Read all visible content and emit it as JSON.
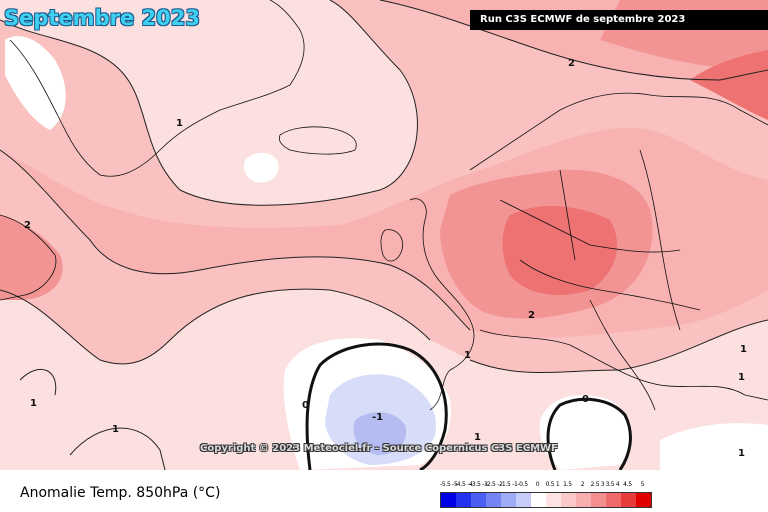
{
  "header": {
    "title": "Septembre 2023",
    "run_label": "Run C3S ECMWF de septembre 2023"
  },
  "map": {
    "copyright": "Copyright © 2023 Meteociel.fr - Source Copernicus C3S ECMWF",
    "contour_labels": [
      "2",
      "1",
      "2",
      "2",
      "1",
      "1",
      "0",
      "-1",
      "0",
      "1",
      "1",
      "1",
      "1",
      "1"
    ]
  },
  "legend": {
    "title": "Anomalie Temp. 850hPa (°C)",
    "scale_labels": [
      "-5.5 -5",
      "-4.5 -4",
      "-3.5 -3",
      "-2.5 -2",
      "-1.5 -1",
      "-0.5",
      "0",
      "0.5 1",
      "1.5",
      "2",
      "2.5 3",
      "3.5 4",
      "4.5",
      "5"
    ],
    "scale_colors": [
      "#0000e6",
      "#2233f0",
      "#4a5ef2",
      "#7484f4",
      "#9daaf6",
      "#c5ccfa",
      "#ffffff",
      "#fde3e3",
      "#fbc8c8",
      "#f8aeae",
      "#f48f8f",
      "#ef6b6b",
      "#e83b3b",
      "#e00000"
    ]
  },
  "colors": {
    "title_fill": "#3fd0f0",
    "warm_light": "#fce0df",
    "warm_mid": "#f9b9b8",
    "warm_strong": "#f29090",
    "warm_hot": "#ec6d6e",
    "cold_light": "#d7dcf8",
    "cold_mid": "#b5bcf2"
  }
}
